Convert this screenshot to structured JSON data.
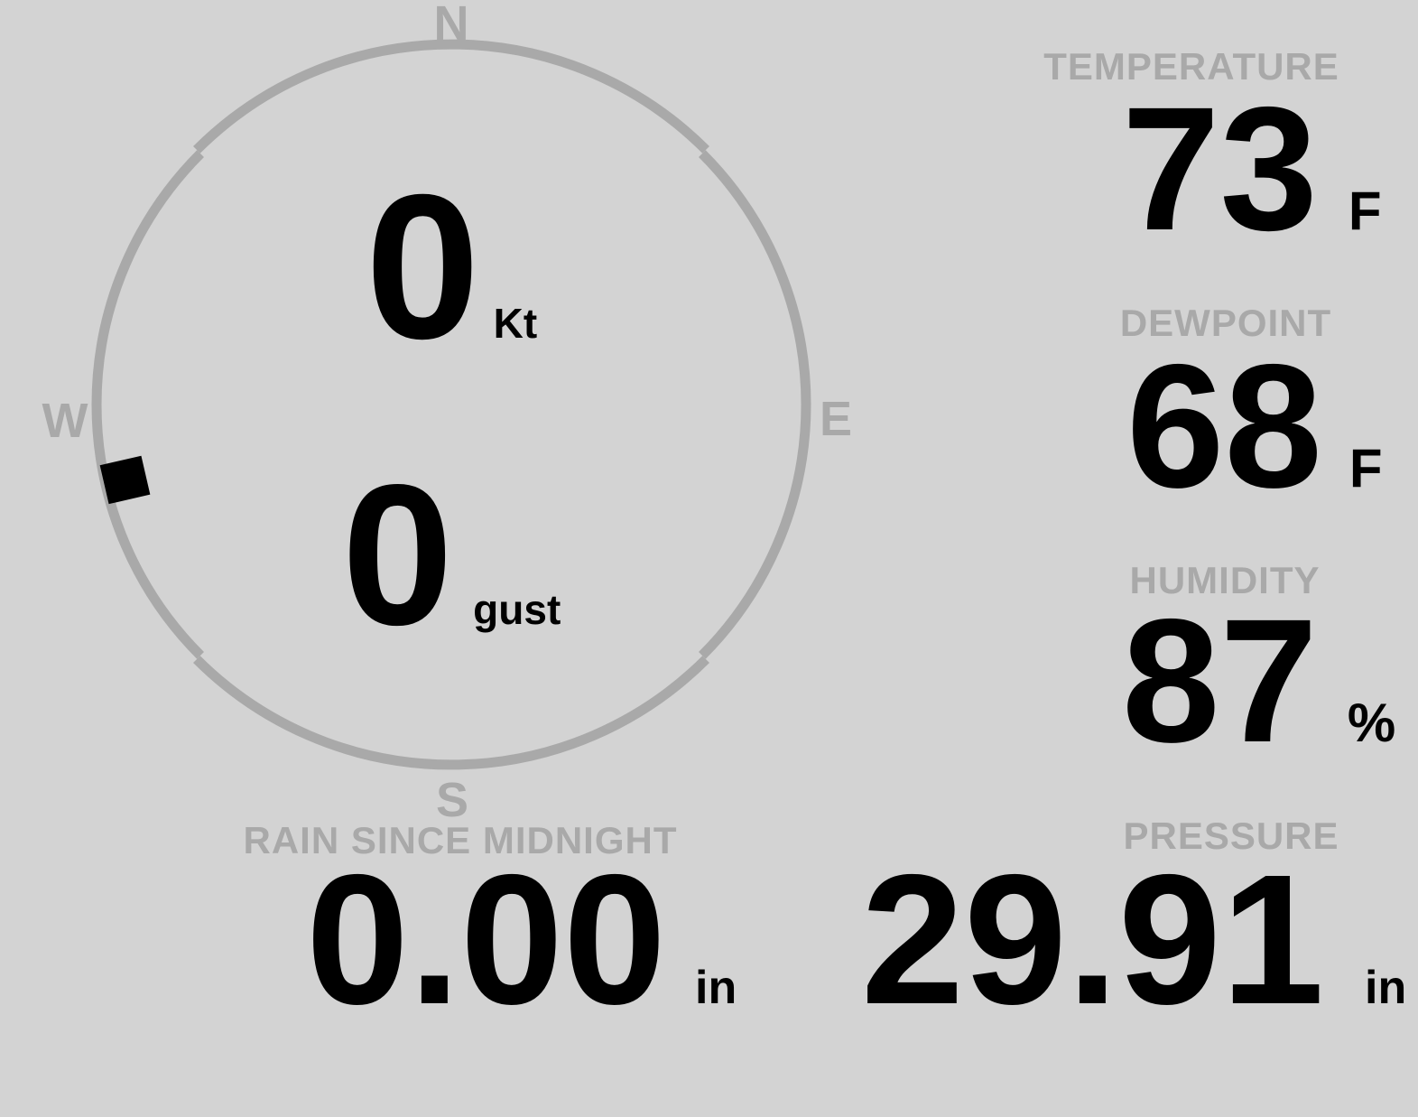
{
  "colors": {
    "background": "#d3d3d3",
    "muted": "#a9a9a9",
    "ink": "#000000"
  },
  "wind": {
    "compass_labels": {
      "north": "N",
      "east": "E",
      "south": "S",
      "west": "W"
    },
    "direction_degrees": 257,
    "speed": {
      "value": "0",
      "unit": "Kt"
    },
    "gust": {
      "value": "0",
      "unit": "gust"
    }
  },
  "metrics": {
    "temperature": {
      "label": "TEMPERATURE",
      "value": "73",
      "unit": "F"
    },
    "dewpoint": {
      "label": "DEWPOINT",
      "value": "68",
      "unit": "F"
    },
    "humidity": {
      "label": "HUMIDITY",
      "value": "87",
      "unit": "%"
    },
    "rain_since_midnight": {
      "label": "RAIN SINCE MIDNIGHT",
      "value": "0.00",
      "unit": "in"
    },
    "pressure": {
      "label": "PRESSURE",
      "value": "29.91",
      "unit": "in"
    }
  }
}
